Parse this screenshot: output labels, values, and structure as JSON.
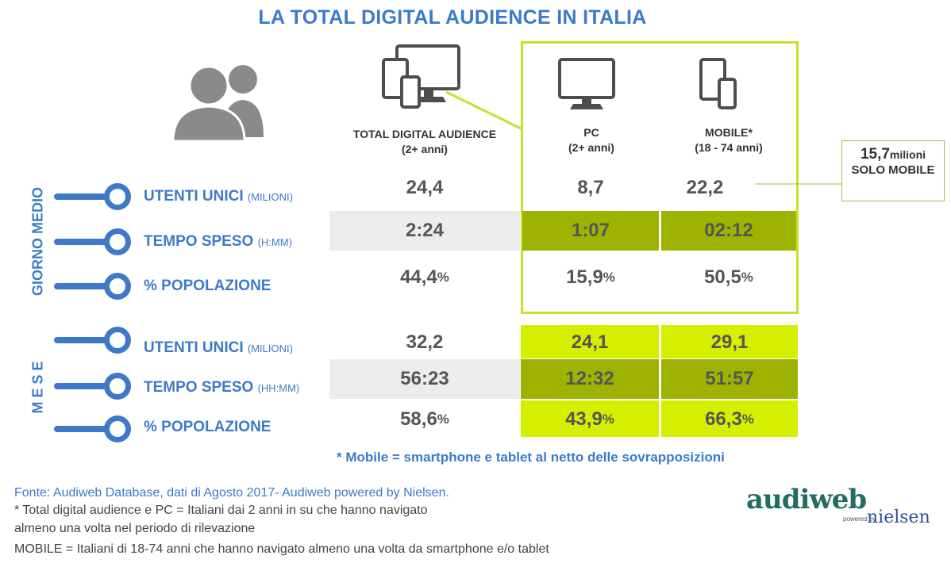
{
  "title": "LA TOTAL DIGITAL AUDIENCE IN ITALIA",
  "icons": {
    "people": "people-icon",
    "all_devices": "devices-icon",
    "pc": "monitor-icon",
    "mobile": "smartphone-tablet-icon"
  },
  "columns": [
    {
      "label": "TOTAL DIGITAL AUDIENCE",
      "sub": "(2+ anni)"
    },
    {
      "label": "PC",
      "sub": "(2+ anni)"
    },
    {
      "label": "MOBILE*",
      "sub": "(18 - 74 anni)"
    }
  ],
  "sections": {
    "day": "GIORNO MEDIO",
    "month": "M E S E"
  },
  "rows": [
    {
      "label": "UTENTI UNICI",
      "unit": "(MILIONI)",
      "values": [
        "24,4",
        "8,7",
        "22,2"
      ],
      "pct": [
        "",
        "",
        ""
      ]
    },
    {
      "label": "TEMPO SPESO",
      "unit": "(H:MM)",
      "values": [
        "2:24",
        "1:07",
        "02:12"
      ],
      "pct": [
        "",
        "",
        ""
      ]
    },
    {
      "label": "% POPOLAZIONE",
      "unit": "",
      "values": [
        "44,4",
        "15,9",
        "50,5"
      ],
      "pct": [
        "%",
        "%",
        "%"
      ]
    },
    {
      "label": "UTENTI UNICI",
      "unit": "(MILIONI)",
      "values": [
        "32,2",
        "24,1",
        "29,1"
      ],
      "pct": [
        "",
        "",
        ""
      ]
    },
    {
      "label": "TEMPO SPESO",
      "unit": "(HH:MM)",
      "values": [
        "56:23",
        "12:32",
        "51:57"
      ],
      "pct": [
        "",
        "",
        ""
      ]
    },
    {
      "label": "% POPOLAZIONE",
      "unit": "",
      "values": [
        "58,6",
        "43,9",
        "66,3"
      ],
      "pct": [
        "%",
        "%",
        "%"
      ]
    }
  ],
  "callout": {
    "value": "15,7",
    "unit": "milioni",
    "line2": "SOLO MOBILE"
  },
  "mobile_note": "* Mobile = smartphone e tablet al netto delle sovrapposizioni",
  "source": [
    "Fonte: Audiweb Database, dati di Agosto 2017- Audiweb powered by Nielsen.",
    "* Total digital audience e PC = Italiani dai 2 anni in su che hanno navigato",
    "almeno una volta nel periodo di rilevazione",
    "MOBILE = Italiani di 18-74 anni che hanno navigato almeno una volta da smartphone e/o tablet"
  ],
  "logo": {
    "main": "audiweb",
    "powered": "powered by",
    "partner": "nielsen"
  },
  "colors": {
    "blue": "#3c7ac9",
    "green_dark": "#9db300",
    "green_light": "#d4f000",
    "green_border": "#c6e02d",
    "band": "#ececec"
  }
}
